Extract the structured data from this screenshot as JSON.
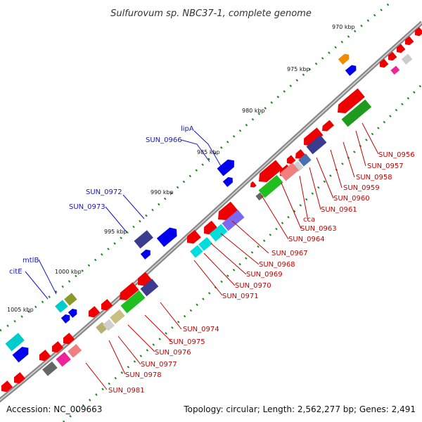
{
  "title": "Sulfurovum sp. NBC37-1, complete genome",
  "footer": {
    "accession": "Accession: NC_009663",
    "summary": "Topology: circular; Length: 2,562,277 bp; Genes: 2,491"
  },
  "colors": {
    "backbone": "#8a8a8a",
    "tick_dot": "#1a8a1a",
    "label_blue": "#1515c8",
    "label_red": "#c80000"
  },
  "kbp_marks": [
    "970 kbp",
    "975 kbp",
    "980 kbp",
    "985 kbp",
    "990 kbp",
    "995 kbp",
    "1000 kbp",
    "1005 kbp"
  ],
  "labels_blue": [
    "lipA",
    "SUN_0966",
    "SUN_0972",
    "SUN_0973",
    "mtlB",
    "citE"
  ],
  "labels_red": [
    "SUN_0956",
    "SUN_0957",
    "SUN_0958",
    "SUN_0959",
    "SUN_0960",
    "SUN_0961",
    "cca",
    "SUN_0963",
    "SUN_0964",
    "SUN_0967",
    "SUN_0968",
    "SUN_0969",
    "SUN_0970",
    "SUN_0971",
    "SUN_0974",
    "SUN_0975",
    "SUN_0976",
    "SUN_0977",
    "SUN_0978",
    "SUN_0981"
  ],
  "feature_colors": [
    "red",
    "green",
    "blue",
    "navy",
    "pink",
    "light-gray",
    "dark-gray",
    "cyan",
    "olive",
    "tan",
    "orange",
    "magenta",
    "steel-blue"
  ]
}
